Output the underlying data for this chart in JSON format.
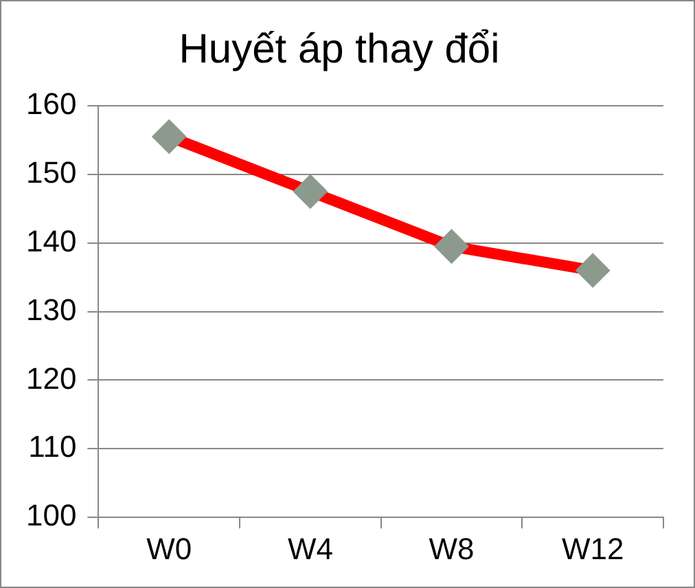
{
  "chart_data": {
    "type": "line",
    "title": "Huyết áp thay đổi",
    "categories": [
      "W0",
      "W4",
      "W8",
      "W12"
    ],
    "series": [
      {
        "color": "#ff0000",
        "values": [
          155.5,
          147.5,
          139.5,
          136
        ]
      }
    ],
    "ylim": [
      100,
      160
    ],
    "yticks": [
      100,
      110,
      120,
      130,
      140,
      150,
      160
    ],
    "grid": "y",
    "legend": false,
    "marker": "diamond",
    "line_style": "solid"
  }
}
